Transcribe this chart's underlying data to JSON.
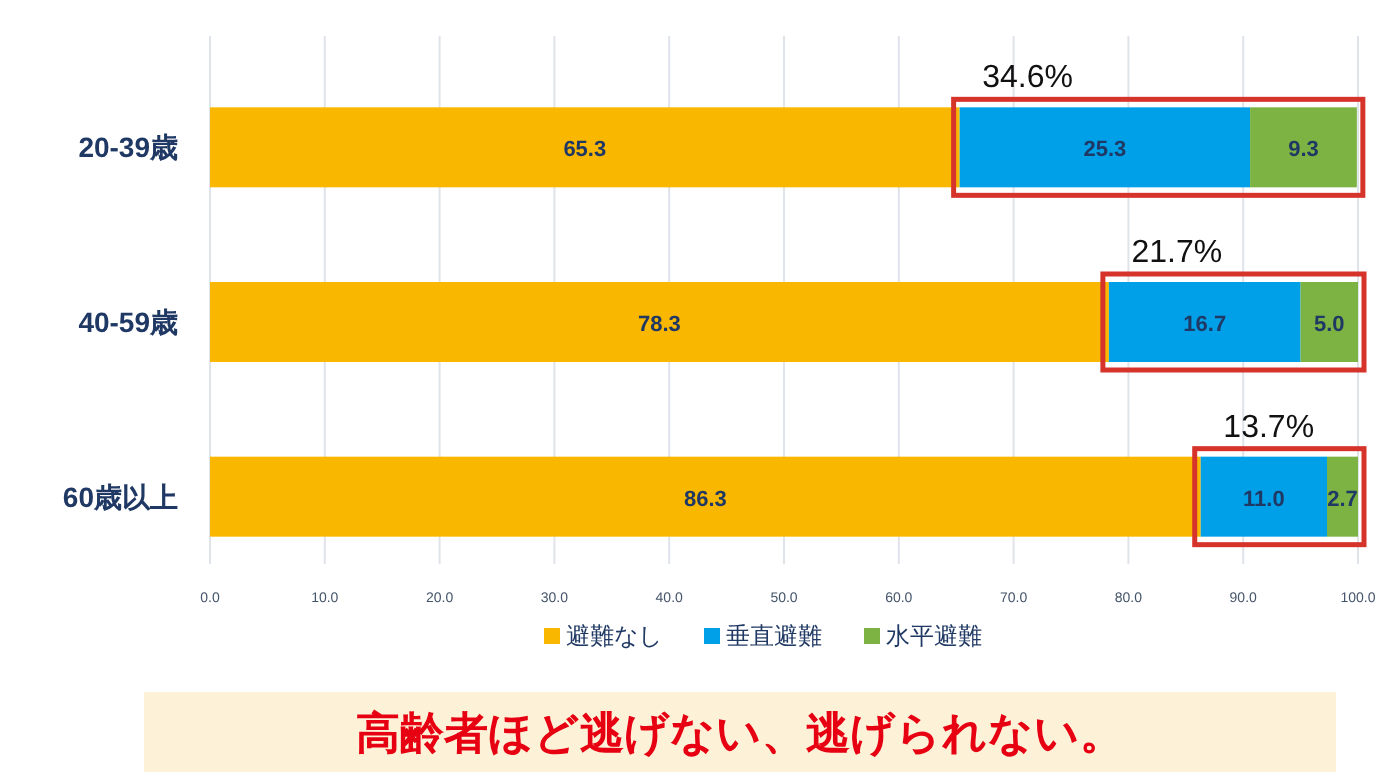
{
  "chart_data": {
    "type": "bar",
    "orientation": "horizontal",
    "stacked": true,
    "title": "高齢者ほど逃げない、逃げられない。",
    "categories": [
      "20-39歳",
      "40-59歳",
      "60歳以上"
    ],
    "series": [
      {
        "name": "避難なし",
        "color": "#f9b700",
        "values": [
          65.3,
          78.3,
          86.3
        ],
        "value_labels": [
          "65.3",
          "78.3",
          "86.3"
        ]
      },
      {
        "name": "垂直避難",
        "color": "#00a0e9",
        "values": [
          25.3,
          16.7,
          11.0
        ],
        "value_labels": [
          "25.3",
          "16.7",
          "11.0"
        ]
      },
      {
        "name": "水平避難",
        "color": "#7cb342",
        "values": [
          9.3,
          5.0,
          2.7
        ],
        "value_labels": [
          "9.3",
          "5.0",
          "2.7"
        ]
      }
    ],
    "annotations": [
      "34.6%",
      "21.7%",
      "13.7%"
    ],
    "xlim": [
      0,
      100
    ],
    "xticks": [
      "0.0",
      "10.0",
      "20.0",
      "30.0",
      "40.0",
      "50.0",
      "60.0",
      "70.0",
      "80.0",
      "90.0",
      "100.0"
    ],
    "grid": "x",
    "legend": "bottom"
  }
}
